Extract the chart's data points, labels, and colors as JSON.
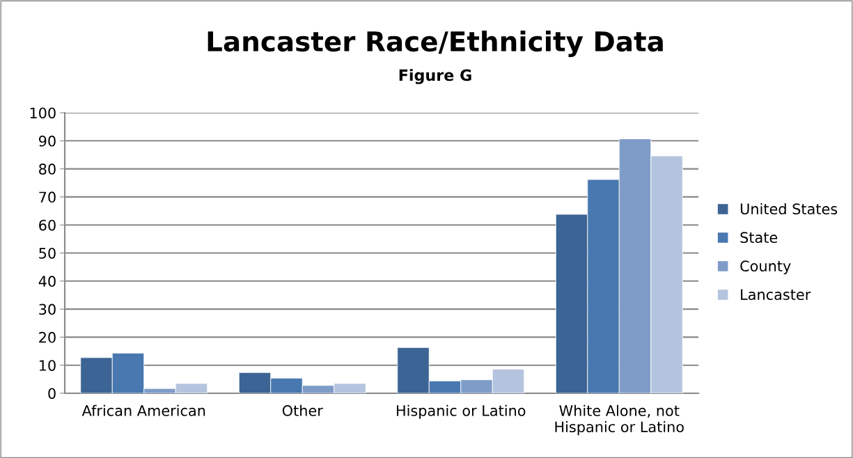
{
  "chart_data": {
    "type": "bar",
    "title": "Lancaster Race/Ethnicity Data",
    "subtitle": "Figure G",
    "categories": [
      "African American",
      "Other",
      "Hispanic or Latino",
      "White Alone, not\nHispanic or Latino"
    ],
    "series": [
      {
        "name": "United States",
        "color": "#3c6494",
        "values": [
          12.7,
          7.4,
          16.3,
          63.8
        ]
      },
      {
        "name": "State",
        "color": "#4978b0",
        "values": [
          14.3,
          5.4,
          4.4,
          76.2
        ]
      },
      {
        "name": "County",
        "color": "#7f9cc8",
        "values": [
          1.7,
          2.8,
          4.8,
          90.7
        ]
      },
      {
        "name": "Lancaster",
        "color": "#b5c4de",
        "values": [
          3.5,
          3.5,
          8.6,
          84.6
        ]
      }
    ],
    "ylim": [
      0,
      100
    ],
    "yticks": [
      0,
      10,
      20,
      30,
      40,
      50,
      60,
      70,
      80,
      90,
      100
    ],
    "grid": "y",
    "legend": "right"
  }
}
